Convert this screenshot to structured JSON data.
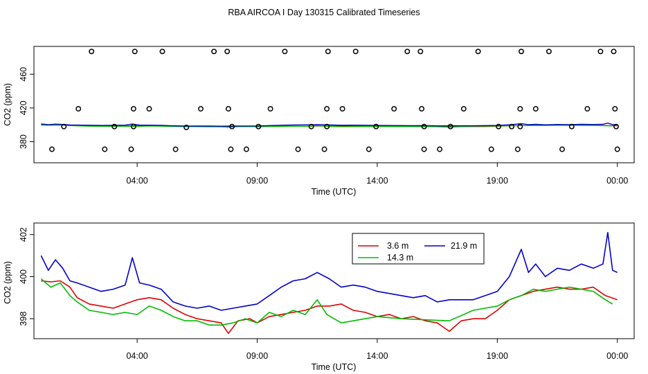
{
  "title": "RBA AIRCOA I  Day 130315  Calibrated Timeseries",
  "colors": {
    "red": "#dd0000",
    "green": "#00bb00",
    "blue": "#0000cc",
    "axis": "#000000"
  },
  "chart_data": [
    {
      "type": "scatter",
      "name": "all-heights-with-calibrations",
      "xlabel": "Time (UTC)",
      "ylabel": "CO2 (ppm)",
      "x_ticks_hours": [
        4,
        9,
        14,
        19,
        24
      ],
      "x_tick_labels": [
        "04:00",
        "09:00",
        "14:00",
        "19:00",
        "00:00"
      ],
      "y_ticks": [
        380,
        420,
        460
      ],
      "y_tick_labels": [
        "380",
        "420",
        "460"
      ],
      "y_range_ppm": [
        355,
        493
      ],
      "x_range_hours": [
        -0.3,
        24.7
      ],
      "calibration_points": [
        {
          "t": 0.45,
          "co2": 371
        },
        {
          "t": 1.55,
          "co2": 419
        },
        {
          "t": 2.1,
          "co2": 487
        },
        {
          "t": 2.65,
          "co2": 371
        },
        {
          "t": 3.75,
          "co2": 371
        },
        {
          "t": 3.85,
          "co2": 419
        },
        {
          "t": 3.9,
          "co2": 487
        },
        {
          "t": 4.5,
          "co2": 419
        },
        {
          "t": 5.05,
          "co2": 487
        },
        {
          "t": 5.6,
          "co2": 371
        },
        {
          "t": 6.65,
          "co2": 419
        },
        {
          "t": 7.2,
          "co2": 487
        },
        {
          "t": 7.75,
          "co2": 487
        },
        {
          "t": 7.8,
          "co2": 419
        },
        {
          "t": 7.9,
          "co2": 371
        },
        {
          "t": 8.55,
          "co2": 371
        },
        {
          "t": 9.55,
          "co2": 419
        },
        {
          "t": 10.15,
          "co2": 487
        },
        {
          "t": 10.7,
          "co2": 371
        },
        {
          "t": 11.8,
          "co2": 371
        },
        {
          "t": 11.9,
          "co2": 419
        },
        {
          "t": 11.95,
          "co2": 487
        },
        {
          "t": 12.55,
          "co2": 419
        },
        {
          "t": 13.1,
          "co2": 487
        },
        {
          "t": 13.65,
          "co2": 371
        },
        {
          "t": 14.7,
          "co2": 419
        },
        {
          "t": 15.25,
          "co2": 487
        },
        {
          "t": 15.8,
          "co2": 487
        },
        {
          "t": 15.85,
          "co2": 419
        },
        {
          "t": 15.95,
          "co2": 371
        },
        {
          "t": 16.6,
          "co2": 371
        },
        {
          "t": 17.6,
          "co2": 419
        },
        {
          "t": 18.2,
          "co2": 487
        },
        {
          "t": 18.75,
          "co2": 371
        },
        {
          "t": 19.85,
          "co2": 371
        },
        {
          "t": 19.95,
          "co2": 419
        },
        {
          "t": 20.0,
          "co2": 487
        },
        {
          "t": 20.6,
          "co2": 419
        },
        {
          "t": 21.15,
          "co2": 487
        },
        {
          "t": 21.7,
          "co2": 371
        },
        {
          "t": 22.75,
          "co2": 419
        },
        {
          "t": 23.3,
          "co2": 487
        },
        {
          "t": 23.85,
          "co2": 487
        },
        {
          "t": 23.9,
          "co2": 419
        },
        {
          "t": 24.0,
          "co2": 371
        },
        {
          "t": 0.95,
          "co2": 398
        },
        {
          "t": 3.05,
          "co2": 398
        },
        {
          "t": 3.85,
          "co2": 398
        },
        {
          "t": 6.05,
          "co2": 397
        },
        {
          "t": 7.95,
          "co2": 398
        },
        {
          "t": 9.05,
          "co2": 398
        },
        {
          "t": 11.25,
          "co2": 398
        },
        {
          "t": 11.9,
          "co2": 398
        },
        {
          "t": 13.95,
          "co2": 398
        },
        {
          "t": 15.95,
          "co2": 398
        },
        {
          "t": 17.05,
          "co2": 398
        },
        {
          "t": 19.05,
          "co2": 398
        },
        {
          "t": 19.6,
          "co2": 398
        },
        {
          "t": 19.95,
          "co2": 398
        },
        {
          "t": 22.1,
          "co2": 398
        },
        {
          "t": 23.95,
          "co2": 398
        }
      ]
    },
    {
      "type": "line",
      "name": "ambient-co2-by-height",
      "xlabel": "Time (UTC)",
      "ylabel": "CO2 (ppm)",
      "x_ticks_hours": [
        4,
        9,
        14,
        19,
        24
      ],
      "x_tick_labels": [
        "04:00",
        "09:00",
        "14:00",
        "19:00",
        "00:00"
      ],
      "y_ticks": [
        398,
        400,
        402
      ],
      "y_tick_labels": [
        "398",
        "400",
        "402"
      ],
      "y_range_ppm": [
        397.05,
        402.55
      ],
      "x_range_hours": [
        -0.3,
        24.7
      ],
      "legend_placement": "top-center",
      "legend": [
        "3.6 m",
        "14.3 m",
        "21.9 m"
      ],
      "series": [
        {
          "name": "3.6 m",
          "color": "red",
          "points": [
            [
              0,
              399.8
            ],
            [
              0.4,
              399.75
            ],
            [
              0.8,
              399.8
            ],
            [
              1.2,
              399.5
            ],
            [
              1.5,
              399.0
            ],
            [
              2,
              398.7
            ],
            [
              2.5,
              398.6
            ],
            [
              3,
              398.5
            ],
            [
              3.5,
              398.7
            ],
            [
              4,
              398.9
            ],
            [
              4.5,
              399.0
            ],
            [
              5,
              398.9
            ],
            [
              5.5,
              398.5
            ],
            [
              6,
              398.2
            ],
            [
              6.5,
              398.0
            ],
            [
              7,
              397.9
            ],
            [
              7.5,
              397.8
            ],
            [
              7.8,
              397.3
            ],
            [
              8.2,
              397.9
            ],
            [
              8.7,
              398.0
            ],
            [
              9,
              397.8
            ],
            [
              9.5,
              398.1
            ],
            [
              10,
              398.2
            ],
            [
              10.5,
              398.3
            ],
            [
              11,
              398.4
            ],
            [
              11.5,
              398.6
            ],
            [
              12,
              398.6
            ],
            [
              12.5,
              398.7
            ],
            [
              13,
              398.4
            ],
            [
              13.5,
              398.3
            ],
            [
              14,
              398.1
            ],
            [
              14.5,
              398.2
            ],
            [
              15,
              398.0
            ],
            [
              15.5,
              398.1
            ],
            [
              16,
              397.9
            ],
            [
              16.5,
              397.8
            ],
            [
              17,
              397.4
            ],
            [
              17.5,
              397.9
            ],
            [
              18,
              398.0
            ],
            [
              18.5,
              398.0
            ],
            [
              19,
              398.4
            ],
            [
              19.5,
              398.9
            ],
            [
              20,
              399.1
            ],
            [
              20.5,
              399.3
            ],
            [
              21,
              399.4
            ],
            [
              21.5,
              399.5
            ],
            [
              22,
              399.4
            ],
            [
              22.5,
              399.4
            ],
            [
              23,
              399.5
            ],
            [
              23.5,
              399.1
            ],
            [
              24,
              398.9
            ]
          ]
        },
        {
          "name": "14.3 m",
          "color": "green",
          "points": [
            [
              0,
              399.9
            ],
            [
              0.4,
              399.5
            ],
            [
              0.8,
              399.7
            ],
            [
              1.2,
              399.1
            ],
            [
              1.5,
              398.8
            ],
            [
              2,
              398.4
            ],
            [
              2.5,
              398.3
            ],
            [
              3,
              398.2
            ],
            [
              3.5,
              398.3
            ],
            [
              4,
              398.2
            ],
            [
              4.5,
              398.6
            ],
            [
              5,
              398.4
            ],
            [
              5.5,
              398.1
            ],
            [
              6,
              397.9
            ],
            [
              6.5,
              397.9
            ],
            [
              7,
              397.7
            ],
            [
              7.5,
              397.7
            ],
            [
              8,
              397.8
            ],
            [
              8.5,
              398.0
            ],
            [
              9,
              397.8
            ],
            [
              9.5,
              398.3
            ],
            [
              10,
              398.1
            ],
            [
              10.5,
              398.4
            ],
            [
              11,
              398.2
            ],
            [
              11.5,
              398.9
            ],
            [
              11.9,
              398.2
            ],
            [
              12.5,
              397.8
            ],
            [
              13,
              397.9
            ],
            [
              14,
              398.1
            ],
            [
              15,
              398.0
            ],
            [
              16,
              397.95
            ],
            [
              17,
              397.9
            ],
            [
              18,
              398.4
            ],
            [
              19,
              398.6
            ],
            [
              19.5,
              398.9
            ],
            [
              20,
              399.1
            ],
            [
              20.5,
              399.4
            ],
            [
              21,
              399.3
            ],
            [
              21.5,
              399.4
            ],
            [
              22,
              399.5
            ],
            [
              22.5,
              399.4
            ],
            [
              23,
              399.3
            ],
            [
              23.5,
              398.9
            ],
            [
              23.8,
              398.7
            ]
          ]
        },
        {
          "name": "21.9 m",
          "color": "blue",
          "points": [
            [
              0,
              401.0
            ],
            [
              0.3,
              400.3
            ],
            [
              0.6,
              400.8
            ],
            [
              0.9,
              400.4
            ],
            [
              1.2,
              399.8
            ],
            [
              1.5,
              399.7
            ],
            [
              2,
              399.5
            ],
            [
              2.5,
              399.3
            ],
            [
              3,
              399.4
            ],
            [
              3.5,
              399.6
            ],
            [
              3.8,
              400.9
            ],
            [
              4.1,
              399.7
            ],
            [
              4.5,
              399.6
            ],
            [
              5,
              399.4
            ],
            [
              5.5,
              398.8
            ],
            [
              6,
              398.6
            ],
            [
              6.5,
              398.5
            ],
            [
              7,
              398.6
            ],
            [
              7.5,
              398.4
            ],
            [
              8,
              398.5
            ],
            [
              8.5,
              398.6
            ],
            [
              9,
              398.7
            ],
            [
              9.5,
              399.1
            ],
            [
              10,
              399.5
            ],
            [
              10.5,
              399.8
            ],
            [
              11,
              399.9
            ],
            [
              11.5,
              400.2
            ],
            [
              12,
              399.9
            ],
            [
              12.5,
              399.5
            ],
            [
              13,
              399.6
            ],
            [
              13.5,
              399.5
            ],
            [
              14,
              399.3
            ],
            [
              14.5,
              399.2
            ],
            [
              15,
              399.1
            ],
            [
              15.5,
              399.0
            ],
            [
              16,
              399.1
            ],
            [
              16.5,
              398.8
            ],
            [
              17,
              398.9
            ],
            [
              17.5,
              398.9
            ],
            [
              18,
              398.9
            ],
            [
              18.5,
              399.1
            ],
            [
              19,
              399.3
            ],
            [
              19.5,
              400.0
            ],
            [
              20,
              401.3
            ],
            [
              20.3,
              400.2
            ],
            [
              20.6,
              400.6
            ],
            [
              21,
              400.0
            ],
            [
              21.5,
              400.4
            ],
            [
              22,
              400.3
            ],
            [
              22.5,
              400.6
            ],
            [
              23,
              400.4
            ],
            [
              23.4,
              400.6
            ],
            [
              23.6,
              402.1
            ],
            [
              23.8,
              400.3
            ],
            [
              24,
              400.2
            ]
          ]
        }
      ]
    }
  ]
}
